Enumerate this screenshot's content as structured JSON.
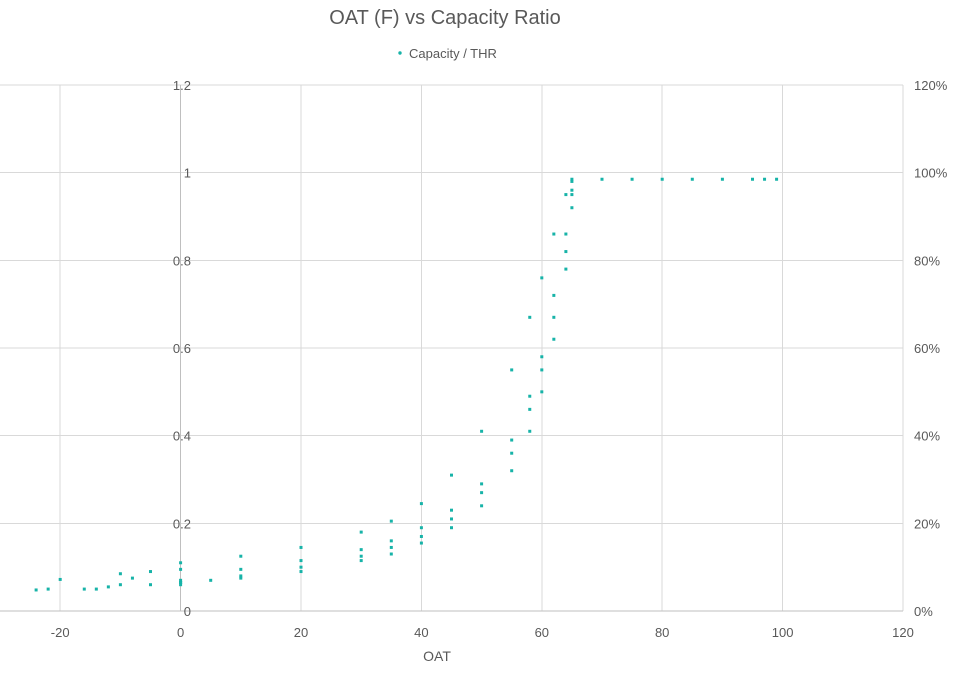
{
  "chart_data": {
    "type": "scatter",
    "title": "OAT (F) vs Capacity Ratio",
    "xlabel": "OAT",
    "ylabel": "",
    "xlim": [
      -30,
      120
    ],
    "ylim": [
      0,
      1.2
    ],
    "x_ticks": [
      "-20",
      "0",
      "20",
      "40",
      "60",
      "80",
      "100",
      "120"
    ],
    "y_ticks": [
      "0",
      "0.2",
      "0.4",
      "0.6",
      "0.8",
      "1",
      "1.2"
    ],
    "y2_ticks": [
      "0%",
      "20%",
      "40%",
      "60%",
      "80%",
      "100%",
      "120%"
    ],
    "grid": true,
    "legend_position": "top",
    "series": [
      {
        "name": "Capacity / THR",
        "color": "#17b3a8",
        "points": [
          [
            -24,
            0.048
          ],
          [
            -22,
            0.05
          ],
          [
            -20,
            0.072
          ],
          [
            -16,
            0.05
          ],
          [
            -14,
            0.05
          ],
          [
            -12,
            0.055
          ],
          [
            -10,
            0.06
          ],
          [
            -8,
            0.075
          ],
          [
            -10,
            0.085
          ],
          [
            -5,
            0.09
          ],
          [
            0,
            0.095
          ],
          [
            -5,
            0.06
          ],
          [
            0,
            0.065
          ],
          [
            5,
            0.07
          ],
          [
            0,
            0.11
          ],
          [
            10,
            0.125
          ],
          [
            20,
            0.145
          ],
          [
            30,
            0.18
          ],
          [
            35,
            0.205
          ],
          [
            40,
            0.245
          ],
          [
            45,
            0.31
          ],
          [
            50,
            0.41
          ],
          [
            55,
            0.55
          ],
          [
            58,
            0.67
          ],
          [
            60,
            0.76
          ],
          [
            62,
            0.86
          ],
          [
            64,
            0.95
          ],
          [
            65,
            0.98
          ],
          [
            0,
            0.07
          ],
          [
            10,
            0.095
          ],
          [
            20,
            0.115
          ],
          [
            30,
            0.14
          ],
          [
            35,
            0.16
          ],
          [
            40,
            0.19
          ],
          [
            45,
            0.23
          ],
          [
            50,
            0.29
          ],
          [
            55,
            0.39
          ],
          [
            58,
            0.49
          ],
          [
            60,
            0.58
          ],
          [
            62,
            0.72
          ],
          [
            64,
            0.86
          ],
          [
            65,
            0.96
          ],
          [
            0,
            0.065
          ],
          [
            10,
            0.08
          ],
          [
            20,
            0.1
          ],
          [
            30,
            0.125
          ],
          [
            35,
            0.145
          ],
          [
            40,
            0.17
          ],
          [
            45,
            0.21
          ],
          [
            50,
            0.27
          ],
          [
            55,
            0.36
          ],
          [
            58,
            0.46
          ],
          [
            60,
            0.55
          ],
          [
            62,
            0.67
          ],
          [
            64,
            0.82
          ],
          [
            65,
            0.95
          ],
          [
            0,
            0.06
          ],
          [
            10,
            0.075
          ],
          [
            20,
            0.09
          ],
          [
            30,
            0.115
          ],
          [
            35,
            0.13
          ],
          [
            40,
            0.155
          ],
          [
            45,
            0.19
          ],
          [
            50,
            0.24
          ],
          [
            55,
            0.32
          ],
          [
            58,
            0.41
          ],
          [
            60,
            0.5
          ],
          [
            62,
            0.62
          ],
          [
            64,
            0.78
          ],
          [
            65,
            0.92
          ],
          [
            65,
            0.985
          ],
          [
            70,
            0.985
          ],
          [
            75,
            0.985
          ],
          [
            80,
            0.985
          ],
          [
            85,
            0.985
          ],
          [
            90,
            0.985
          ],
          [
            95,
            0.985
          ],
          [
            97,
            0.985
          ],
          [
            99,
            0.985
          ]
        ]
      }
    ]
  }
}
